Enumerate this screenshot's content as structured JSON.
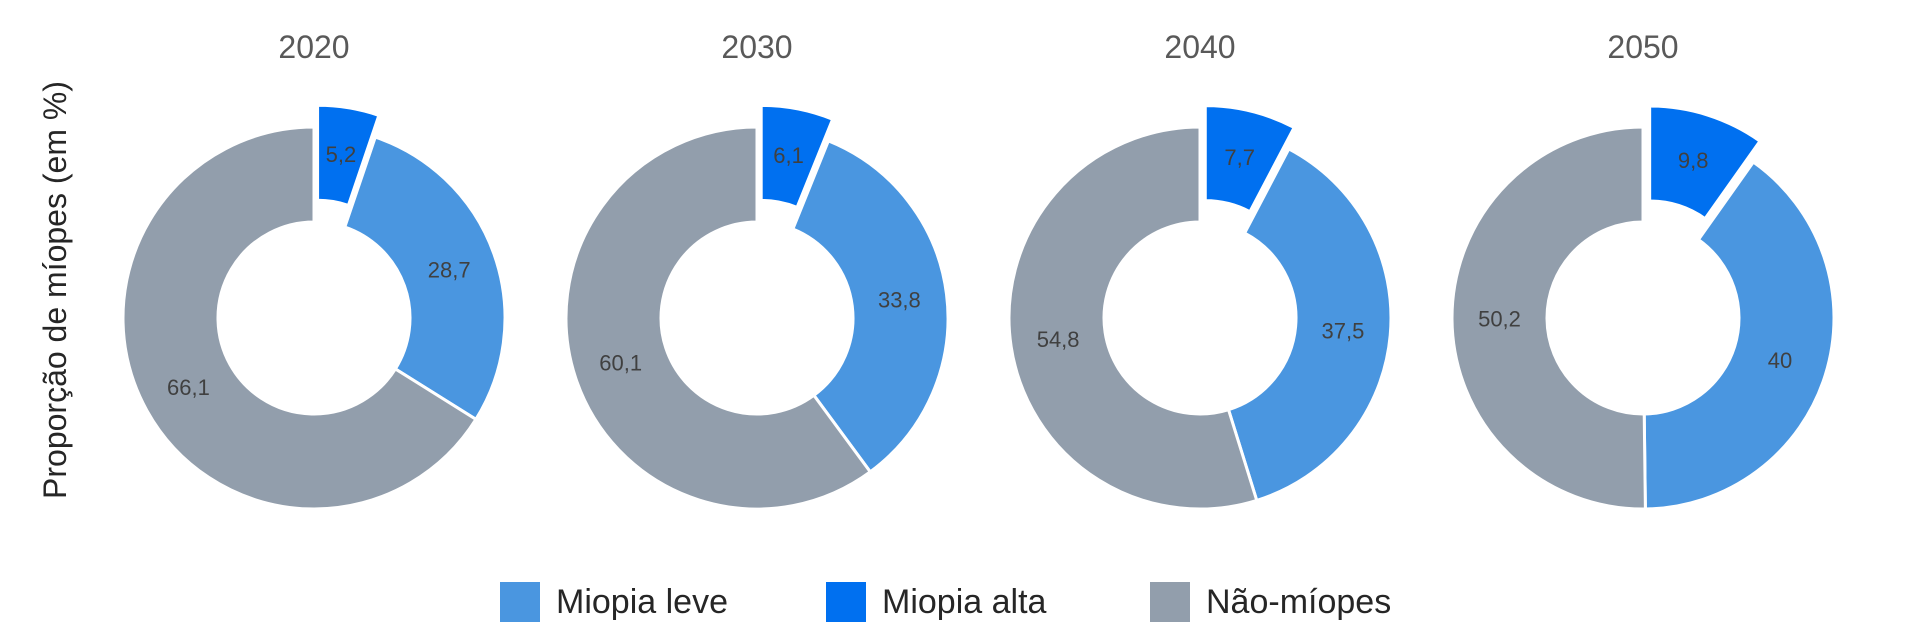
{
  "chart_data": [
    {
      "type": "pie",
      "title": "2020",
      "slices": [
        {
          "label": "Miopia alta",
          "value": 5.2,
          "display": "5,2",
          "color": "#0070F0",
          "exploded": true
        },
        {
          "label": "Miopia leve",
          "value": 28.7,
          "display": "28,7",
          "color": "#4A96E0",
          "exploded": false
        },
        {
          "label": "Não-míopes",
          "value": 66.1,
          "display": "66,1",
          "color": "#929EAC",
          "exploded": false
        }
      ]
    },
    {
      "type": "pie",
      "title": "2030",
      "slices": [
        {
          "label": "Miopia alta",
          "value": 6.1,
          "display": "6,1",
          "color": "#0070F0",
          "exploded": true
        },
        {
          "label": "Miopia leve",
          "value": 33.8,
          "display": "33,8",
          "color": "#4A96E0",
          "exploded": false
        },
        {
          "label": "Não-míopes",
          "value": 60.1,
          "display": "60,1",
          "color": "#929EAC",
          "exploded": false
        }
      ]
    },
    {
      "type": "pie",
      "title": "2040",
      "slices": [
        {
          "label": "Miopia alta",
          "value": 7.7,
          "display": "7,7",
          "color": "#0070F0",
          "exploded": true
        },
        {
          "label": "Miopia leve",
          "value": 37.5,
          "display": "37,5",
          "color": "#4A96E0",
          "exploded": false
        },
        {
          "label": "Não-míopes",
          "value": 54.8,
          "display": "54,8",
          "color": "#929EAC",
          "exploded": false
        }
      ]
    },
    {
      "type": "pie",
      "title": "2050",
      "slices": [
        {
          "label": "Miopia alta",
          "value": 9.8,
          "display": "9,8",
          "color": "#0070F0",
          "exploded": true
        },
        {
          "label": "Miopia leve",
          "value": 40,
          "display": "40",
          "color": "#4A96E0",
          "exploded": false
        },
        {
          "label": "Não-míopes",
          "value": 50.2,
          "display": "50,2",
          "color": "#929EAC",
          "exploded": false
        }
      ]
    }
  ],
  "ylabel": "Proporção de míopes (em %)",
  "legend": {
    "position": "bottom",
    "items": [
      {
        "label": "Miopia leve",
        "color": "#4A96E0"
      },
      {
        "label": "Miopia alta",
        "color": "#0070F0"
      },
      {
        "label": "Não-míopes",
        "color": "#929EAC"
      }
    ]
  }
}
